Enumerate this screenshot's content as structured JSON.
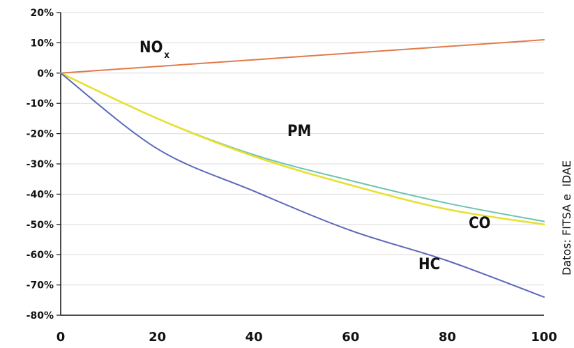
{
  "chart_data": {
    "type": "line",
    "title": "",
    "xlabel": "",
    "ylabel": "",
    "xlim": [
      0,
      100
    ],
    "ylim": [
      -80,
      20
    ],
    "x_ticks": [
      "0",
      "20",
      "40",
      "60",
      "80",
      "100"
    ],
    "y_ticks": [
      "20%",
      "10%",
      "0%",
      "-10%",
      "-20%",
      "-30%",
      "-40%",
      "-50%",
      "-60%",
      "-70%",
      "-80%"
    ],
    "grid": true,
    "series": [
      {
        "name": "NO",
        "subscript": "x",
        "color": "#e07b4a",
        "x": [
          0,
          20,
          40,
          60,
          80,
          100
        ],
        "values": [
          0,
          2.2,
          4.4,
          6.6,
          8.8,
          11
        ]
      },
      {
        "name": "PM",
        "color": "#6fc3b2",
        "x": [
          0,
          20,
          40,
          60,
          80,
          100
        ],
        "values": [
          0,
          -15,
          -27,
          -35.5,
          -43,
          -49
        ]
      },
      {
        "name": "CO",
        "color": "#e8e030",
        "x": [
          0,
          20,
          40,
          60,
          80,
          100
        ],
        "values": [
          0,
          -15,
          -27.5,
          -37,
          -45,
          -50
        ]
      },
      {
        "name": "HC",
        "color": "#5b67b8",
        "x": [
          0,
          20,
          40,
          60,
          80,
          100
        ],
        "values": [
          0,
          -25,
          -39,
          -52,
          -62,
          -74
        ]
      }
    ],
    "source": "Datos: FITSA e  IDAE"
  }
}
